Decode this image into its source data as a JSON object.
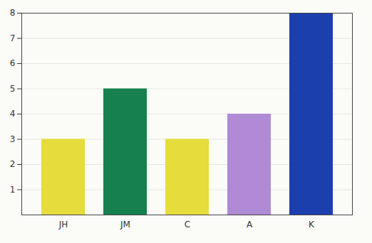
{
  "chart_data": {
    "type": "bar",
    "categories": [
      "JH",
      "JM",
      "C",
      "A",
      "K"
    ],
    "values": [
      3,
      5,
      3,
      4,
      8
    ],
    "colors": [
      "#e6dc3c",
      "#16804e",
      "#e6dc3c",
      "#b18ad6",
      "#1c3fae"
    ],
    "ylim": [
      0,
      8
    ],
    "yticks": [
      1,
      2,
      3,
      4,
      5,
      6,
      7,
      8
    ],
    "grid": true
  }
}
